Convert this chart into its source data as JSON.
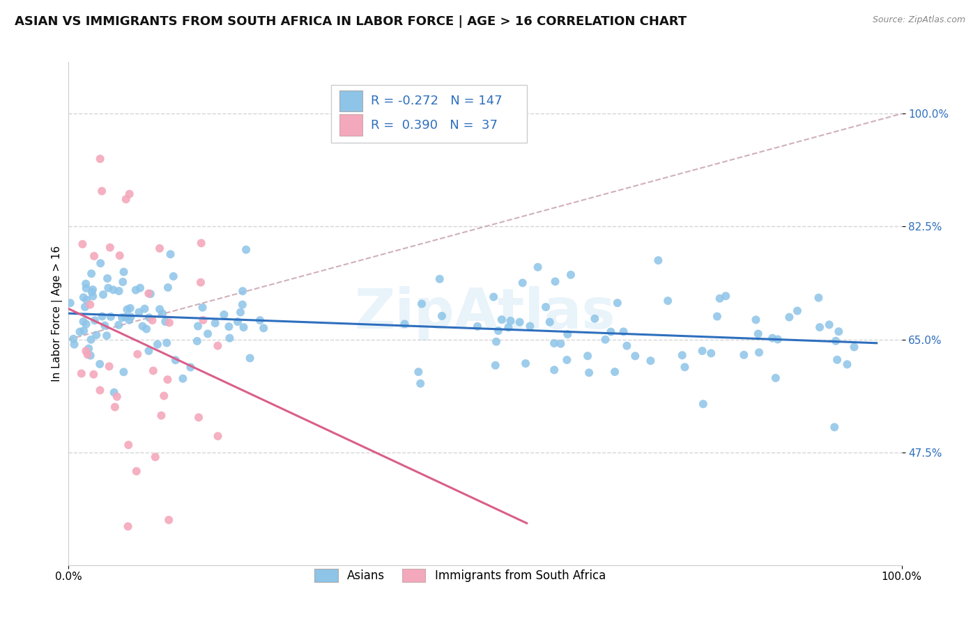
{
  "title": "ASIAN VS IMMIGRANTS FROM SOUTH AFRICA IN LABOR FORCE | AGE > 16 CORRELATION CHART",
  "source": "Source: ZipAtlas.com",
  "ylabel": "In Labor Force | Age > 16",
  "blue_R": "-0.272",
  "blue_N": "147",
  "pink_R": "0.390",
  "pink_N": "37",
  "blue_color": "#8dc4e8",
  "pink_color": "#f4a8bc",
  "blue_line_color": "#2e6fbe",
  "pink_line_color": "#d95f8a",
  "diagonal_color": "#d0b0b8",
  "legend_label_blue": "Asians",
  "legend_label_pink": "Immigrants from South Africa",
  "background_color": "#ffffff",
  "grid_color": "#d5d5d5",
  "watermark": "ZipAtlas",
  "title_fontsize": 13,
  "axis_label_fontsize": 11,
  "tick_fontsize": 11,
  "legend_fontsize": 13
}
